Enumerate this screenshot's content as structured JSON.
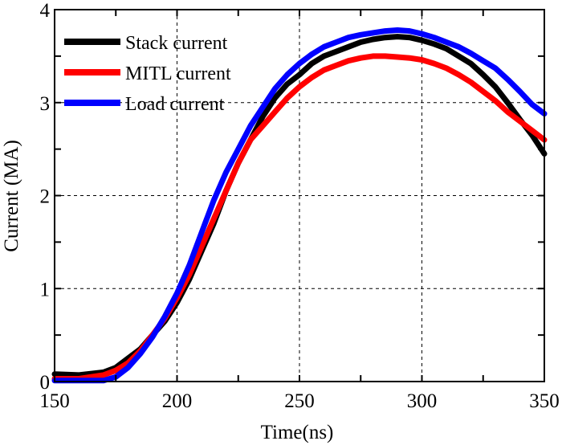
{
  "chart_data": {
    "type": "line",
    "title": "",
    "xlabel": "Time(ns)",
    "ylabel": "Current (MA)",
    "xlim": [
      150,
      350
    ],
    "ylim": [
      0,
      4
    ],
    "xticks": [
      150,
      200,
      250,
      300,
      350
    ],
    "yticks": [
      0,
      1,
      2,
      3,
      4
    ],
    "grid": true,
    "legend_position": "top-left",
    "x": [
      150,
      160,
      170,
      175,
      180,
      185,
      190,
      195,
      200,
      205,
      210,
      215,
      220,
      225,
      230,
      235,
      240,
      245,
      250,
      255,
      260,
      265,
      270,
      275,
      280,
      285,
      290,
      295,
      300,
      305,
      310,
      315,
      320,
      325,
      330,
      335,
      340,
      345,
      350
    ],
    "series": [
      {
        "name": "Stack current",
        "color": "#000000",
        "values": [
          0.08,
          0.07,
          0.1,
          0.15,
          0.25,
          0.35,
          0.5,
          0.65,
          0.85,
          1.1,
          1.4,
          1.7,
          2.05,
          2.35,
          2.6,
          2.85,
          3.05,
          3.2,
          3.3,
          3.42,
          3.5,
          3.55,
          3.6,
          3.65,
          3.68,
          3.7,
          3.71,
          3.7,
          3.67,
          3.63,
          3.58,
          3.5,
          3.42,
          3.3,
          3.17,
          3.0,
          2.82,
          2.65,
          2.45
        ]
      },
      {
        "name": "MITL current",
        "color": "#ff0000",
        "values": [
          0.03,
          0.03,
          0.07,
          0.12,
          0.2,
          0.33,
          0.5,
          0.68,
          0.9,
          1.15,
          1.45,
          1.75,
          2.05,
          2.35,
          2.6,
          2.75,
          2.9,
          3.05,
          3.17,
          3.27,
          3.35,
          3.4,
          3.45,
          3.48,
          3.5,
          3.5,
          3.49,
          3.48,
          3.46,
          3.42,
          3.37,
          3.3,
          3.22,
          3.12,
          3.02,
          2.9,
          2.8,
          2.7,
          2.6
        ]
      },
      {
        "name": "Load current",
        "color": "#0000ff",
        "values": [
          0.01,
          0.01,
          0.01,
          0.05,
          0.15,
          0.3,
          0.48,
          0.7,
          0.95,
          1.25,
          1.6,
          1.95,
          2.25,
          2.5,
          2.75,
          2.95,
          3.15,
          3.3,
          3.42,
          3.52,
          3.6,
          3.65,
          3.7,
          3.73,
          3.75,
          3.77,
          3.78,
          3.77,
          3.74,
          3.7,
          3.65,
          3.6,
          3.53,
          3.45,
          3.37,
          3.25,
          3.12,
          2.98,
          2.88
        ]
      }
    ]
  }
}
